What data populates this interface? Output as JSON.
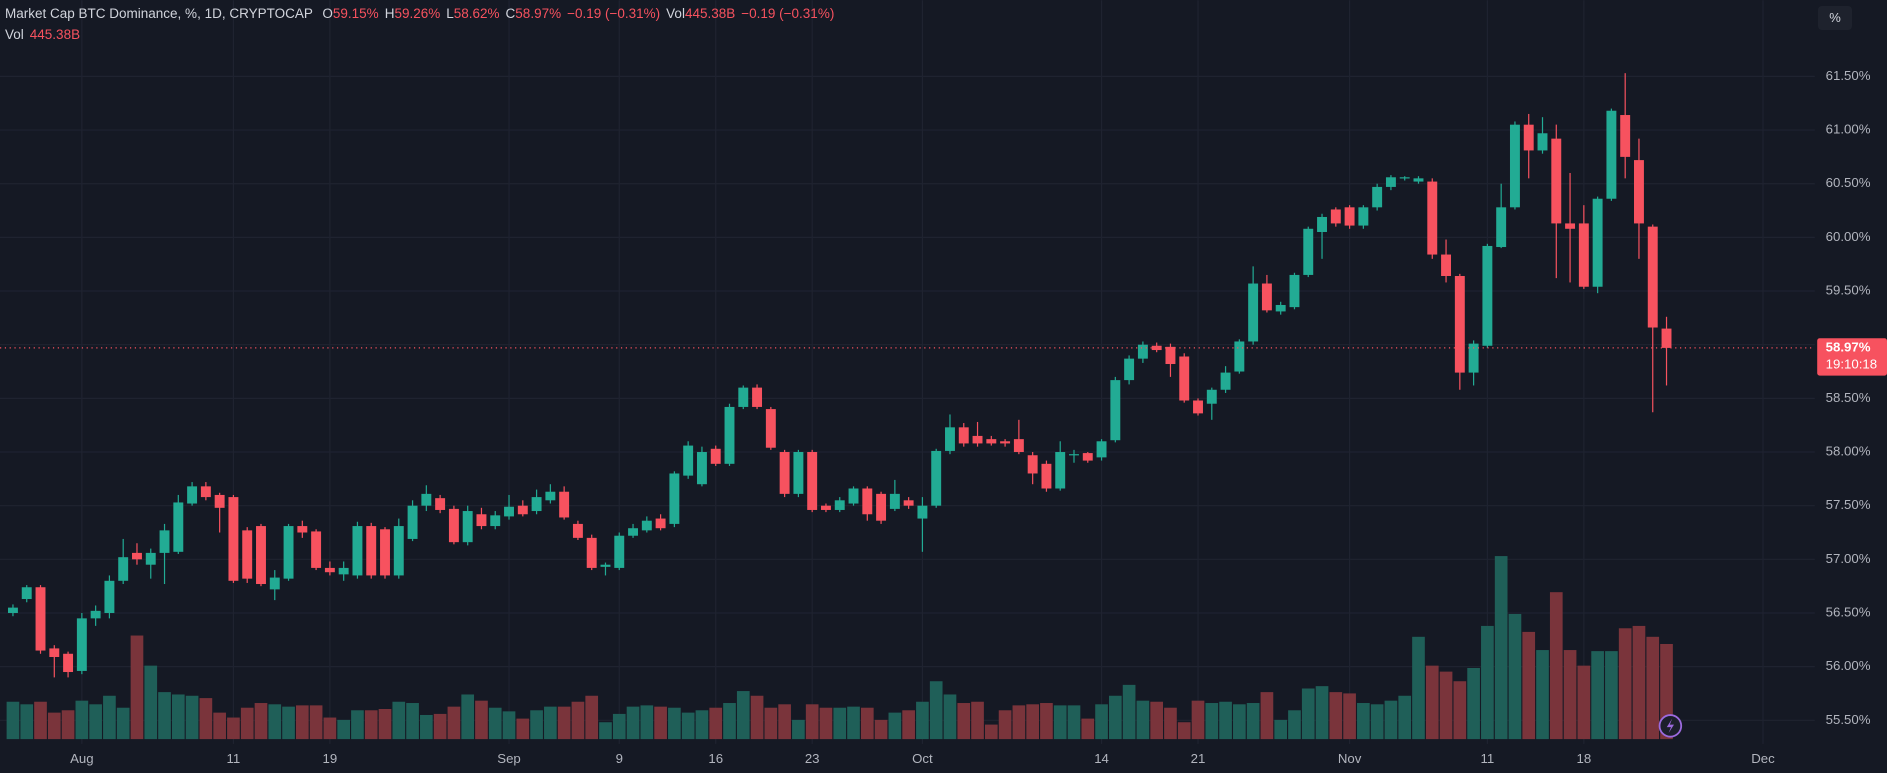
{
  "chart_data": {
    "type": "candlestick",
    "header": {
      "title": "Market Cap BTC Dominance, %, 1D, CRYPTOCAP",
      "o_label": "O",
      "o": "59.15%",
      "h_label": "H",
      "h": "59.26%",
      "l_label": "L",
      "l": "58.62%",
      "c_label": "C",
      "c": "58.97%",
      "change": "−0.19 (−0.31%)",
      "vol_label": "Vol",
      "vol": "445.38B",
      "vol_change": "−0.19 (−0.31%)",
      "vol2_label": "Vol",
      "vol2": "445.38B"
    },
    "scale_button": "%",
    "last_price_label": "58.97%",
    "countdown": "19:10:18",
    "up_color": "#22ab94",
    "down_color": "#f7525f",
    "volume_up_color": "#1f5f58",
    "volume_down_color": "#7a343b",
    "grid": true,
    "x": [
      -5,
      -4,
      -3,
      -2,
      -1,
      0,
      1,
      2,
      3,
      4,
      5,
      6,
      7,
      8,
      9,
      10,
      11,
      12,
      13,
      14,
      15,
      16,
      17,
      18,
      19,
      20,
      21,
      22,
      23,
      24,
      25,
      26,
      27,
      28,
      29,
      30,
      31,
      32,
      33,
      34,
      35,
      36,
      37,
      38,
      39,
      40,
      41,
      42,
      43,
      44,
      45,
      46,
      47,
      48,
      49,
      50,
      51,
      52,
      53,
      54,
      55,
      56,
      57,
      58,
      59,
      60,
      61,
      62,
      63,
      64,
      65,
      66,
      67,
      68,
      69,
      70,
      71,
      72,
      73,
      74,
      75,
      76,
      77,
      78,
      79,
      80,
      81,
      82,
      83,
      84,
      85,
      86,
      87,
      88,
      89,
      90,
      91,
      92,
      93,
      94,
      95,
      96,
      97,
      98,
      99,
      100,
      101,
      102,
      103,
      104,
      105,
      106,
      107,
      108,
      109,
      110,
      111,
      112,
      113,
      114,
      115
    ],
    "open": [
      56.5,
      56.63,
      56.74,
      56.17,
      56.12,
      55.96,
      56.45,
      56.5,
      56.8,
      57.06,
      56.95,
      57.06,
      57.07,
      57.52,
      57.68,
      57.6,
      57.58,
      57.27,
      57.31,
      56.72,
      56.82,
      57.31,
      57.26,
      56.92,
      56.86,
      56.85,
      57.31,
      57.28,
      56.85,
      57.19,
      57.5,
      57.57,
      57.47,
      57.16,
      57.42,
      57.31,
      57.4,
      57.5,
      57.45,
      57.55,
      57.63,
      57.33,
      57.2,
      56.93,
      56.92,
      57.22,
      57.27,
      57.38,
      57.33,
      57.78,
      57.7,
      58.03,
      57.89,
      58.42,
      58.6,
      58.4,
      58.0,
      57.61,
      58.0,
      57.5,
      57.46,
      57.52,
      57.66,
      57.61,
      57.47,
      57.55,
      57.38,
      57.5,
      58.01,
      58.23,
      58.15,
      58.12,
      58.1,
      58.12,
      57.97,
      57.89,
      57.66,
      57.97,
      57.99,
      57.95,
      58.11,
      58.67,
      58.87,
      58.99,
      58.98,
      58.89,
      58.48,
      58.45,
      58.58,
      58.75,
      59.03,
      59.57,
      59.31,
      59.35,
      59.65,
      60.05,
      60.26,
      60.28,
      60.11,
      60.28,
      60.47,
      60.55,
      60.52,
      60.52,
      59.84,
      59.64,
      58.74,
      58.99,
      59.91,
      60.28,
      61.05,
      60.81,
      60.92,
      60.13,
      60.13,
      59.54,
      60.36,
      61.14,
      60.72,
      60.1,
      59.15
    ],
    "high": [
      56.58,
      56.76,
      56.76,
      56.2,
      56.14,
      56.5,
      56.57,
      56.85,
      57.19,
      57.15,
      57.1,
      57.33,
      57.6,
      57.72,
      57.72,
      57.62,
      57.6,
      57.3,
      57.33,
      56.9,
      57.33,
      57.36,
      57.28,
      56.98,
      56.98,
      57.35,
      57.34,
      57.3,
      57.38,
      57.55,
      57.69,
      57.6,
      57.5,
      57.5,
      57.48,
      57.45,
      57.6,
      57.55,
      57.65,
      57.7,
      57.68,
      57.36,
      57.23,
      56.97,
      57.25,
      57.33,
      57.4,
      57.42,
      57.82,
      58.1,
      58.05,
      58.06,
      58.45,
      58.62,
      58.63,
      58.42,
      58.02,
      58.02,
      58.02,
      57.52,
      57.58,
      57.68,
      57.68,
      57.63,
      57.74,
      57.58,
      57.58,
      58.03,
      58.35,
      58.27,
      58.28,
      58.15,
      58.12,
      58.3,
      58.0,
      57.92,
      58.1,
      58.02,
      58.0,
      58.12,
      58.7,
      58.9,
      59.03,
      59.02,
      59.01,
      58.92,
      58.5,
      58.6,
      58.8,
      59.05,
      59.73,
      59.65,
      59.4,
      59.67,
      60.1,
      60.22,
      60.28,
      60.3,
      60.3,
      60.5,
      60.58,
      60.57,
      60.57,
      60.55,
      59.98,
      59.66,
      59.04,
      59.94,
      60.5,
      61.08,
      61.15,
      61.12,
      61.05,
      60.6,
      60.3,
      60.38,
      61.2,
      61.53,
      60.92,
      60.12,
      59.26
    ],
    "low": [
      56.47,
      56.6,
      56.12,
      55.9,
      55.9,
      55.93,
      56.38,
      56.45,
      56.77,
      56.95,
      56.82,
      56.77,
      57.05,
      57.5,
      57.55,
      57.25,
      56.78,
      56.78,
      56.75,
      56.62,
      56.8,
      57.2,
      56.9,
      56.85,
      56.8,
      56.82,
      56.82,
      56.82,
      56.82,
      57.17,
      57.45,
      57.43,
      57.14,
      57.13,
      57.28,
      57.28,
      57.37,
      57.4,
      57.42,
      57.52,
      57.37,
      57.18,
      56.9,
      56.85,
      56.9,
      57.2,
      57.25,
      57.27,
      57.3,
      57.75,
      57.68,
      57.87,
      57.87,
      58.4,
      58.4,
      58.02,
      57.58,
      57.58,
      57.44,
      57.44,
      57.44,
      57.5,
      57.36,
      57.33,
      57.45,
      57.47,
      57.07,
      57.48,
      57.98,
      58.05,
      58.05,
      58.06,
      58.05,
      57.98,
      57.7,
      57.63,
      57.64,
      57.9,
      57.9,
      57.92,
      58.09,
      58.63,
      58.83,
      58.93,
      58.7,
      58.46,
      58.34,
      58.3,
      58.55,
      58.73,
      59.0,
      59.3,
      59.28,
      59.33,
      59.63,
      59.8,
      60.1,
      60.08,
      60.08,
      60.25,
      60.44,
      60.53,
      60.5,
      59.8,
      59.58,
      58.58,
      58.62,
      58.97,
      59.9,
      60.26,
      60.55,
      60.78,
      59.62,
      59.58,
      59.52,
      59.48,
      60.34,
      60.55,
      59.8,
      58.37,
      58.62
    ],
    "close": [
      56.55,
      56.74,
      56.15,
      56.09,
      55.95,
      56.45,
      56.52,
      56.8,
      57.02,
      57.0,
      57.06,
      57.27,
      57.53,
      57.68,
      57.58,
      57.48,
      56.8,
      56.82,
      56.77,
      56.83,
      57.31,
      57.25,
      56.92,
      56.88,
      56.92,
      57.31,
      56.85,
      56.85,
      57.31,
      57.5,
      57.61,
      57.46,
      57.16,
      57.45,
      57.31,
      57.41,
      57.49,
      57.42,
      57.58,
      57.63,
      57.39,
      57.2,
      56.92,
      56.95,
      57.22,
      57.29,
      57.36,
      57.29,
      57.8,
      58.06,
      58.0,
      57.89,
      58.42,
      58.6,
      58.42,
      58.04,
      57.61,
      58.0,
      57.46,
      57.46,
      57.55,
      57.66,
      57.42,
      57.36,
      57.61,
      57.5,
      57.5,
      58.01,
      58.23,
      58.08,
      58.08,
      58.08,
      58.08,
      58.0,
      57.8,
      57.66,
      58.0,
      57.98,
      57.92,
      58.1,
      58.67,
      58.87,
      59.0,
      58.95,
      58.82,
      58.48,
      58.36,
      58.58,
      58.74,
      59.03,
      59.57,
      59.32,
      59.37,
      59.65,
      60.08,
      60.19,
      60.13,
      60.11,
      60.28,
      60.47,
      60.56,
      60.56,
      60.55,
      59.84,
      59.64,
      58.74,
      59.01,
      59.92,
      60.28,
      61.05,
      60.81,
      60.97,
      60.13,
      60.08,
      59.54,
      60.36,
      61.18,
      60.75,
      60.13,
      59.16,
      58.97
    ],
    "volume": [
      175,
      163,
      175,
      124,
      135,
      180,
      163,
      203,
      147,
      485,
      344,
      220,
      209,
      203,
      192,
      124,
      101,
      147,
      169,
      163,
      152,
      158,
      158,
      101,
      90,
      135,
      135,
      141,
      175,
      169,
      113,
      118,
      152,
      209,
      180,
      147,
      130,
      96,
      135,
      152,
      152,
      175,
      203,
      79,
      118,
      152,
      158,
      152,
      147,
      124,
      135,
      147,
      169,
      225,
      203,
      147,
      163,
      90,
      163,
      147,
      147,
      152,
      147,
      90,
      124,
      135,
      175,
      271,
      209,
      169,
      175,
      68,
      135,
      158,
      163,
      169,
      158,
      158,
      96,
      163,
      203,
      254,
      180,
      175,
      147,
      79,
      180,
      169,
      175,
      163,
      169,
      220,
      90,
      135,
      237,
      248,
      220,
      214,
      169,
      163,
      180,
      203,
      479,
      344,
      316,
      271,
      333,
      530,
      857,
      586,
      502,
      417,
      688,
      417,
      344,
      412,
      412,
      519,
      530,
      479,
      445.38
    ],
    "volume_lim": [
      0,
      1127
    ],
    "xlim": [
      -5.94,
      125.76
    ],
    "xticks": [
      {
        "value": 0,
        "label": "Aug"
      },
      11,
      {
        "value": 18,
        "label": "19"
      },
      {
        "value": 31,
        "label": "Sep"
      },
      {
        "value": 39,
        "label": "9"
      },
      {
        "value": 46,
        "label": "16"
      },
      {
        "value": 53,
        "label": "23"
      },
      {
        "value": 61,
        "label": "Oct"
      },
      {
        "value": 74,
        "label": "14"
      },
      {
        "value": 81,
        "label": "21"
      },
      {
        "value": 92,
        "label": "Nov"
      },
      {
        "value": 102,
        "label": "11"
      },
      {
        "value": 109,
        "label": "18"
      },
      {
        "value": 122,
        "label": "Dec"
      }
    ],
    "ylim": [
      55.28,
      62.21
    ],
    "yticks": [
      {
        "value": 55.5,
        "label": "55.50%"
      },
      {
        "value": 56,
        "label": "56.00%"
      },
      {
        "value": 56.5,
        "label": "56.50%"
      },
      {
        "value": 57,
        "label": "57.00%"
      },
      {
        "value": 57.5,
        "label": "57.50%"
      },
      {
        "value": 58,
        "label": "58.00%"
      },
      {
        "value": 58.5,
        "label": "58.50%"
      },
      {
        "value": 59,
        "label": "59.00%"
      },
      {
        "value": 59.5,
        "label": "59.50%"
      },
      {
        "value": 60,
        "label": "60.00%"
      },
      {
        "value": 60.5,
        "label": "60.50%"
      },
      {
        "value": 61,
        "label": "61.00%"
      },
      {
        "value": 61.5,
        "label": "61.50%"
      }
    ]
  }
}
